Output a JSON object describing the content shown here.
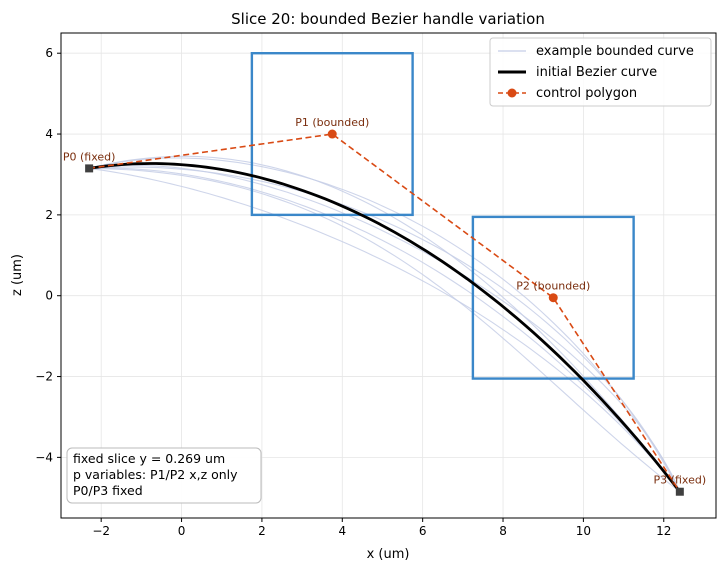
{
  "chart_data": {
    "type": "line",
    "title": "Slice 20: bounded Bezier handle variation",
    "xlabel": "x (um)",
    "ylabel": "z (um)",
    "xlim": [
      -3.0,
      13.3
    ],
    "ylim": [
      -5.5,
      6.5
    ],
    "xticks": [
      -2,
      0,
      2,
      4,
      6,
      8,
      10,
      12
    ],
    "yticks": [
      -4,
      -2,
      0,
      2,
      4,
      6
    ],
    "xtick_labels": [
      "−2",
      "0",
      "2",
      "4",
      "6",
      "8",
      "10",
      "12"
    ],
    "ytick_labels": [
      "−4",
      "−2",
      "0",
      "2",
      "4",
      "6"
    ],
    "grid": true,
    "legend_position": "top-right",
    "legend": [
      {
        "label": "example bounded curve",
        "color": "#c5cee6",
        "style": "thin-line"
      },
      {
        "label": "initial Bezier curve",
        "color": "#000000",
        "style": "thick-line"
      },
      {
        "label": "control polygon",
        "color": "#d94a14",
        "style": "dashed-marker"
      }
    ],
    "colors": {
      "example": "#c5cee6",
      "initial": "#000000",
      "polygon": "#d94a14",
      "bounds": "#3a87c9",
      "point_label": "#7a2e0e",
      "fixed_marker": "#404040"
    },
    "control_points": [
      {
        "label": "P0 (fixed)",
        "x": -2.3,
        "z": 3.15,
        "fixed": true
      },
      {
        "label": "P1 (bounded)",
        "x": 3.75,
        "z": 4.0,
        "fixed": false
      },
      {
        "label": "P2 (bounded)",
        "x": 9.25,
        "z": -0.05,
        "fixed": false
      },
      {
        "label": "P3 (fixed)",
        "x": 12.4,
        "z": -4.85,
        "fixed": true
      }
    ],
    "bounds": [
      {
        "x0": 1.75,
        "x1": 5.75,
        "z0": 2.0,
        "z1": 6.0
      },
      {
        "x0": 7.25,
        "x1": 11.25,
        "z0": -2.05,
        "z1": 1.95
      }
    ],
    "initial_curve_handles": [
      {
        "x": -2.3,
        "z": 3.15
      },
      {
        "x": 1.1,
        "z": 3.7
      },
      {
        "x": 6.6,
        "z": 2.6
      },
      {
        "x": 12.4,
        "z": -4.85
      }
    ],
    "example_curves": [
      [
        [
          -2.3,
          3.15
        ],
        [
          3.4,
          4.6
        ],
        [
          8.2,
          0.6
        ],
        [
          12.4,
          -4.85
        ]
      ],
      [
        [
          -2.3,
          3.15
        ],
        [
          1.8,
          3.3
        ],
        [
          7.6,
          1.2
        ],
        [
          12.4,
          -4.85
        ]
      ],
      [
        [
          -2.3,
          3.15
        ],
        [
          4.3,
          3.6
        ],
        [
          10.3,
          -0.4
        ],
        [
          12.4,
          -4.85
        ]
      ],
      [
        [
          -2.3,
          3.15
        ],
        [
          2.2,
          4.3
        ],
        [
          9.0,
          1.6
        ],
        [
          12.4,
          -4.85
        ]
      ],
      [
        [
          -2.3,
          3.15
        ],
        [
          5.1,
          3.1
        ],
        [
          7.9,
          -1.4
        ],
        [
          12.4,
          -4.85
        ]
      ],
      [
        [
          -2.3,
          3.15
        ],
        [
          2.9,
          3.9
        ],
        [
          10.8,
          -1.0
        ],
        [
          12.4,
          -4.85
        ]
      ],
      [
        [
          -2.3,
          3.15
        ],
        [
          1.9,
          2.6
        ],
        [
          8.5,
          0.1
        ],
        [
          12.4,
          -4.85
        ]
      ]
    ],
    "info_box": [
      "fixed slice y = 0.269 um",
      "p variables: P1/P2 x,z only",
      "P0/P3 fixed"
    ]
  }
}
